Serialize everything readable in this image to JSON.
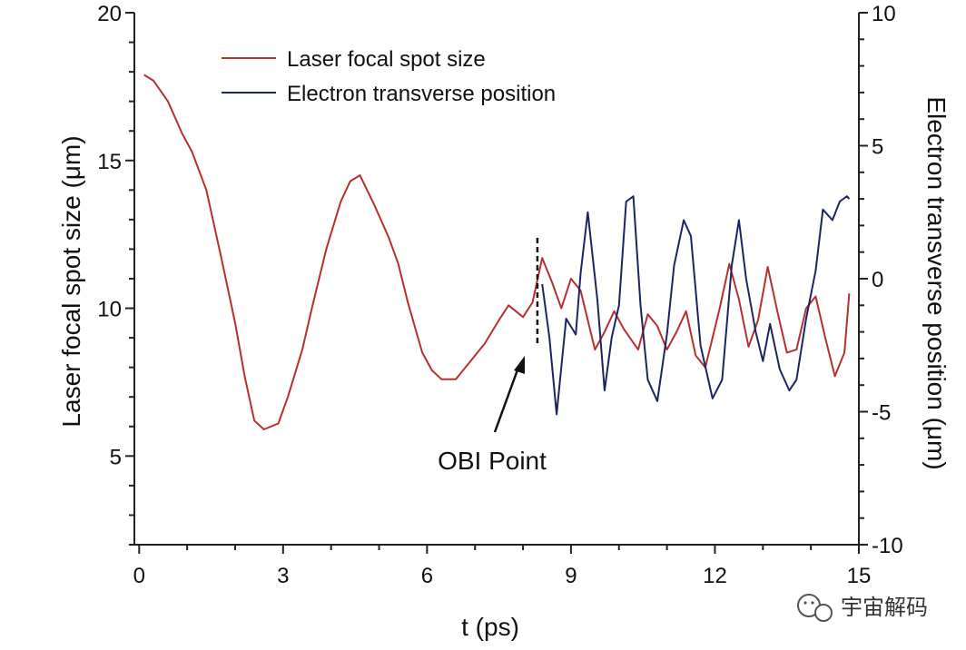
{
  "chart_data": {
    "type": "line",
    "xlabel": "t (ps)",
    "ylabel": "Laser focal spot size (μm)",
    "y2label": "Electron transverse position (μm)",
    "xlim": [
      -0.1,
      15
    ],
    "ylim": [
      2,
      20
    ],
    "y2lim": [
      -10,
      10
    ],
    "xticks": [
      0,
      3,
      6,
      9,
      12,
      15
    ],
    "yticks": [
      5,
      10,
      15,
      20
    ],
    "y2ticks": [
      -10,
      -5,
      0,
      5,
      10
    ],
    "legend_position": "top-left",
    "grid": false,
    "series": [
      {
        "name": "Laser focal spot size",
        "axis": "left",
        "color": "#b5302e",
        "points": [
          [
            0.1,
            17.9
          ],
          [
            0.3,
            17.7
          ],
          [
            0.6,
            17.0
          ],
          [
            0.9,
            15.9
          ],
          [
            1.1,
            15.3
          ],
          [
            1.4,
            14.0
          ],
          [
            1.7,
            11.8
          ],
          [
            2.0,
            9.5
          ],
          [
            2.2,
            7.7
          ],
          [
            2.4,
            6.2
          ],
          [
            2.6,
            5.9
          ],
          [
            2.9,
            6.1
          ],
          [
            3.1,
            7.0
          ],
          [
            3.4,
            8.6
          ],
          [
            3.6,
            10.0
          ],
          [
            3.9,
            12.0
          ],
          [
            4.2,
            13.6
          ],
          [
            4.4,
            14.3
          ],
          [
            4.6,
            14.5
          ],
          [
            4.9,
            13.5
          ],
          [
            5.2,
            12.4
          ],
          [
            5.4,
            11.5
          ],
          [
            5.6,
            10.2
          ],
          [
            5.9,
            8.5
          ],
          [
            6.1,
            7.9
          ],
          [
            6.3,
            7.6
          ],
          [
            6.6,
            7.6
          ],
          [
            6.9,
            8.2
          ],
          [
            7.2,
            8.8
          ],
          [
            7.5,
            9.6
          ],
          [
            7.7,
            10.1
          ],
          [
            8.0,
            9.7
          ],
          [
            8.2,
            10.2
          ],
          [
            8.4,
            11.7
          ],
          [
            8.6,
            10.9
          ],
          [
            8.8,
            10.0
          ],
          [
            9.0,
            11.0
          ],
          [
            9.2,
            10.6
          ],
          [
            9.5,
            8.6
          ],
          [
            9.7,
            9.2
          ],
          [
            9.9,
            9.9
          ],
          [
            10.1,
            9.3
          ],
          [
            10.4,
            8.6
          ],
          [
            10.6,
            9.8
          ],
          [
            10.8,
            9.4
          ],
          [
            11.0,
            8.6
          ],
          [
            11.2,
            9.2
          ],
          [
            11.4,
            9.9
          ],
          [
            11.6,
            8.4
          ],
          [
            11.8,
            8.0
          ],
          [
            12.1,
            10.0
          ],
          [
            12.3,
            11.5
          ],
          [
            12.5,
            10.3
          ],
          [
            12.7,
            8.7
          ],
          [
            12.9,
            9.6
          ],
          [
            13.1,
            11.4
          ],
          [
            13.3,
            9.9
          ],
          [
            13.5,
            8.5
          ],
          [
            13.7,
            8.6
          ],
          [
            13.9,
            10.0
          ],
          [
            14.1,
            10.4
          ],
          [
            14.3,
            9.0
          ],
          [
            14.5,
            7.7
          ],
          [
            14.7,
            8.5
          ],
          [
            14.8,
            10.5
          ]
        ]
      },
      {
        "name": "Electron transverse position",
        "axis": "right",
        "color": "#1b2563",
        "points": [
          [
            8.4,
            -0.2
          ],
          [
            8.55,
            -2.2
          ],
          [
            8.7,
            -5.1
          ],
          [
            8.9,
            -1.5
          ],
          [
            9.1,
            -2.1
          ],
          [
            9.2,
            0.2
          ],
          [
            9.35,
            2.5
          ],
          [
            9.55,
            -0.8
          ],
          [
            9.7,
            -4.2
          ],
          [
            9.85,
            -2.2
          ],
          [
            10.0,
            -1.0
          ],
          [
            10.15,
            2.9
          ],
          [
            10.3,
            3.1
          ],
          [
            10.45,
            -1.0
          ],
          [
            10.6,
            -3.8
          ],
          [
            10.8,
            -4.6
          ],
          [
            11.0,
            -2.1
          ],
          [
            11.15,
            0.5
          ],
          [
            11.35,
            2.2
          ],
          [
            11.5,
            1.6
          ],
          [
            11.7,
            -2.5
          ],
          [
            11.95,
            -4.5
          ],
          [
            12.15,
            -3.8
          ],
          [
            12.35,
            0.5
          ],
          [
            12.5,
            2.2
          ],
          [
            12.65,
            0.0
          ],
          [
            12.85,
            -2.0
          ],
          [
            13.0,
            -3.1
          ],
          [
            13.15,
            -1.7
          ],
          [
            13.35,
            -3.4
          ],
          [
            13.55,
            -4.2
          ],
          [
            13.7,
            -3.8
          ],
          [
            13.9,
            -1.5
          ],
          [
            14.1,
            0.3
          ],
          [
            14.25,
            2.6
          ],
          [
            14.45,
            2.2
          ],
          [
            14.6,
            2.9
          ],
          [
            14.75,
            3.1
          ],
          [
            14.8,
            3.0
          ]
        ]
      }
    ],
    "annotations": [
      {
        "text": "OBI Point",
        "marker_x": 8.3
      }
    ]
  },
  "watermark": {
    "icon": "wechat-icon",
    "text": "宇宙解码"
  }
}
